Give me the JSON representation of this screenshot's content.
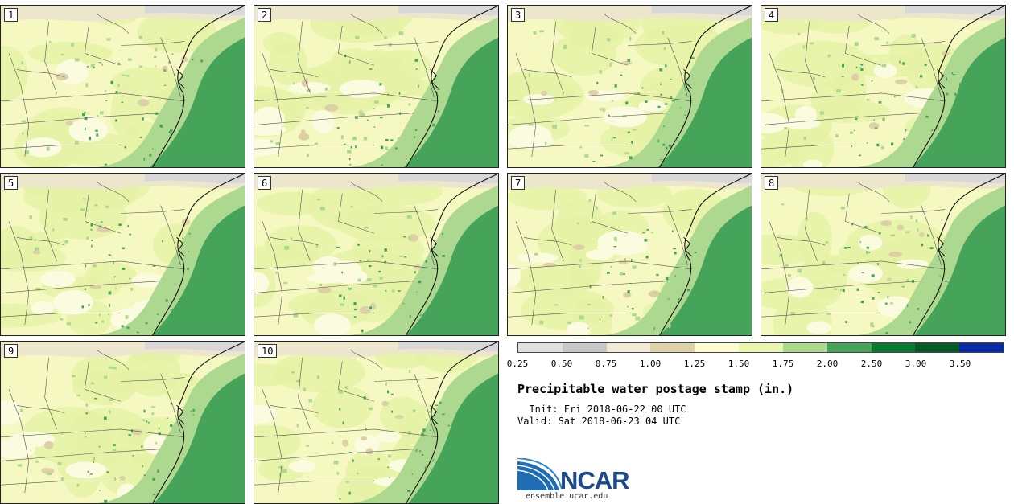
{
  "panels": [
    {
      "label": "1"
    },
    {
      "label": "2"
    },
    {
      "label": "3"
    },
    {
      "label": "4"
    },
    {
      "label": "5"
    },
    {
      "label": "6"
    },
    {
      "label": "7"
    },
    {
      "label": "8"
    },
    {
      "label": "9"
    },
    {
      "label": "10"
    }
  ],
  "legend": {
    "colors": [
      "#e0e0e0",
      "#c8c8c8",
      "#f0ead6",
      "#e0d2a8",
      "#fdfdd0",
      "#eaf5ad",
      "#add890",
      "#45a35a",
      "#0a7a32",
      "#055a25",
      "#0a2aa8"
    ],
    "ticks": [
      "0.25",
      "0.50",
      "0.75",
      "1.00",
      "1.25",
      "1.50",
      "1.75",
      "2.00",
      "2.50",
      "3.00",
      "3.50"
    ]
  },
  "title": "Precipitable water postage stamp (in.)",
  "init": "  Init: Fri 2018-06-22 00 UTC",
  "valid": "Valid: Sat 2018-06-23 04 UTC",
  "logo": {
    "name": "NCAR",
    "url": "ensemble.ucar.edu"
  }
}
